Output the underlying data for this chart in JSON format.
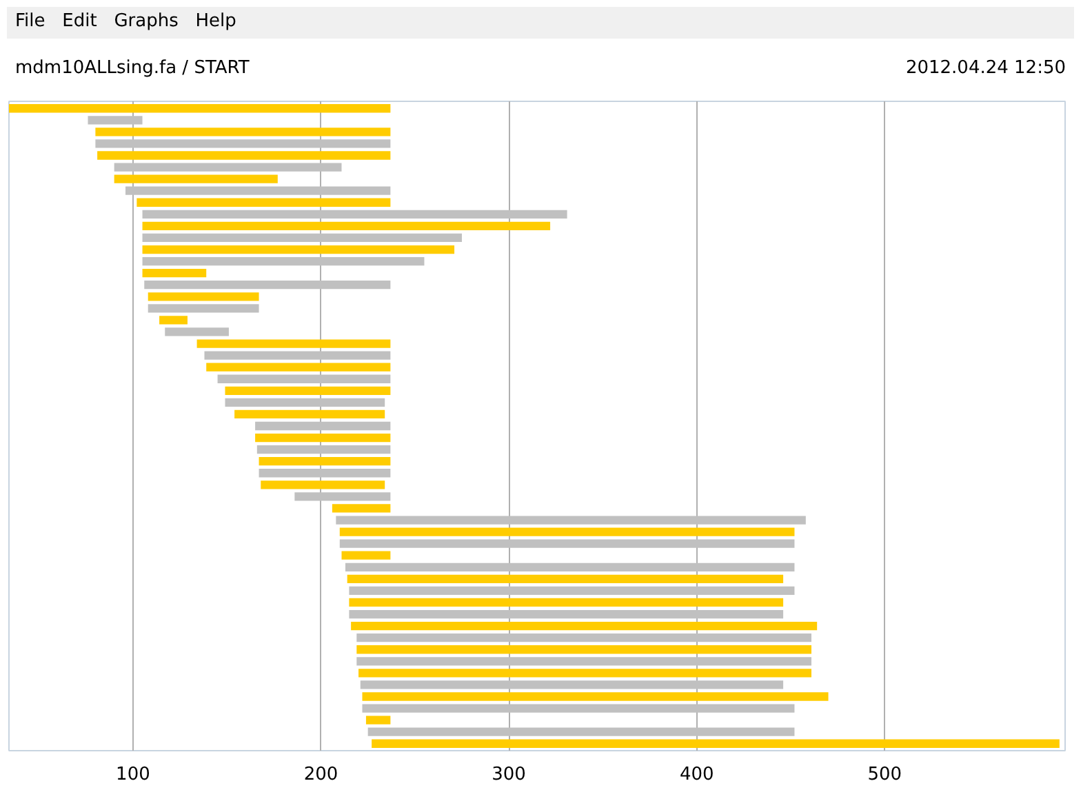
{
  "chart_data": {
    "type": "bar",
    "orientation": "horizontal",
    "title": "mdm10ALLsing.fa / START",
    "subtitle": "2012.04.24 12:50",
    "annotations": [
      "File",
      "Edit",
      "Graphs",
      "Help"
    ],
    "categories": [
      null,
      null,
      null,
      null,
      null,
      null,
      null,
      null,
      null,
      null,
      null,
      null,
      null,
      null,
      null,
      null,
      null,
      null,
      null,
      null,
      null,
      null,
      null,
      null,
      null,
      null,
      null,
      null,
      null,
      null,
      null,
      null,
      null,
      null,
      null,
      null,
      null,
      null,
      null,
      null,
      null,
      null,
      null,
      null,
      null,
      null,
      null,
      null,
      null,
      null,
      null,
      null,
      null,
      null,
      null
    ],
    "base": [
      34,
      76,
      80,
      80,
      81,
      90,
      90,
      96,
      102,
      105,
      105,
      105,
      105,
      105,
      105,
      106,
      108,
      108,
      114,
      117,
      134,
      138,
      139,
      145,
      149,
      149,
      154,
      165,
      165,
      166,
      167,
      167,
      168,
      186,
      206,
      208,
      210,
      210,
      211,
      213,
      214,
      215,
      215,
      215,
      216,
      219,
      219,
      219,
      220,
      221,
      222,
      222,
      224,
      225,
      227
    ],
    "values": [
      203,
      29,
      157,
      157,
      156,
      121,
      87,
      141,
      135,
      226,
      217,
      170,
      166,
      150,
      34,
      131,
      59,
      59,
      15,
      34,
      103,
      99,
      98,
      92,
      88,
      85,
      80,
      72,
      72,
      71,
      70,
      70,
      66,
      51,
      31,
      250,
      242,
      242,
      26,
      239,
      232,
      237,
      231,
      231,
      248,
      242,
      242,
      242,
      241,
      225,
      248,
      230,
      13,
      227,
      366
    ],
    "colors": [
      "#ffcc00",
      "#c0c0c0",
      "#ffcc00",
      "#c0c0c0",
      "#ffcc00",
      "#c0c0c0",
      "#ffcc00",
      "#c0c0c0",
      "#ffcc00",
      "#c0c0c0",
      "#ffcc00",
      "#c0c0c0",
      "#ffcc00",
      "#c0c0c0",
      "#ffcc00",
      "#c0c0c0",
      "#ffcc00",
      "#c0c0c0",
      "#ffcc00",
      "#c0c0c0",
      "#ffcc00",
      "#c0c0c0",
      "#ffcc00",
      "#c0c0c0",
      "#ffcc00",
      "#c0c0c0",
      "#ffcc00",
      "#c0c0c0",
      "#ffcc00",
      "#c0c0c0",
      "#ffcc00",
      "#c0c0c0",
      "#ffcc00",
      "#c0c0c0",
      "#ffcc00",
      "#c0c0c0",
      "#ffcc00",
      "#c0c0c0",
      "#ffcc00",
      "#c0c0c0",
      "#ffcc00",
      "#c0c0c0",
      "#ffcc00",
      "#c0c0c0",
      "#ffcc00",
      "#c0c0c0",
      "#ffcc00",
      "#c0c0c0",
      "#ffcc00",
      "#c0c0c0",
      "#ffcc00",
      "#c0c0c0",
      "#ffcc00",
      "#c0c0c0",
      "#ffcc00"
    ],
    "xlim": [
      34,
      596
    ],
    "xticks": [
      100,
      200,
      300,
      400,
      500
    ],
    "grid": "x",
    "tick_labels": "x"
  }
}
